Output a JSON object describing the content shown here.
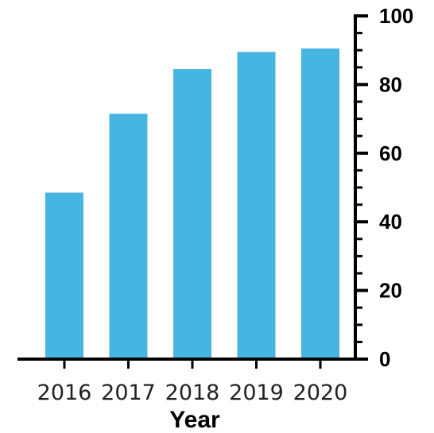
{
  "chart_data": {
    "type": "bar",
    "categories": [
      "2016",
      "2017",
      "2018",
      "2019",
      "2020"
    ],
    "values": [
      48.5,
      71.5,
      84.5,
      89.5,
      90.5
    ],
    "title": "",
    "xlabel": "Year",
    "ylabel": "",
    "ylim": [
      0,
      100
    ],
    "y_ticks": [
      "0",
      "20",
      "40",
      "60",
      "80",
      "100"
    ],
    "y_axis_side": "right",
    "grid": false,
    "bar_color": "#47b5e2",
    "axis_color": "#000000"
  }
}
